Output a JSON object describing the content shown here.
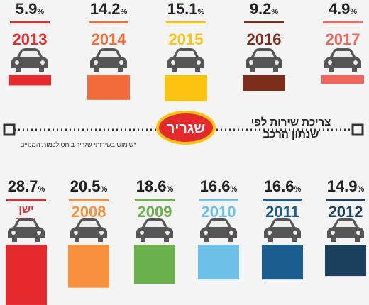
{
  "chart_data": [
    {
      "type": "bar",
      "categories": [
        "2013",
        "2014",
        "2015",
        "2016",
        "2017"
      ],
      "values": [
        5.9,
        14.2,
        15.1,
        9.2,
        4.9
      ],
      "value_labels": [
        "5.9%",
        "14.2%",
        "15.1%",
        "9.2%",
        "4.9%"
      ],
      "colors": [
        "#e52a2d",
        "#f26b3a",
        "#fcc410",
        "#7b2e1b",
        "#f0685c"
      ]
    },
    {
      "type": "bar",
      "categories": [
        "ישן יותר",
        "2008",
        "2009",
        "2010",
        "2011",
        "2012"
      ],
      "values": [
        28.7,
        20.5,
        18.6,
        16.6,
        16.6,
        14.9
      ],
      "value_labels": [
        "28.7%",
        "20.5%",
        "18.6%",
        "16.6%",
        "16.6%",
        "14.9%"
      ],
      "colors": [
        "#e52a2d",
        "#f7913d",
        "#6ab14b",
        "#6cc0e9",
        "#1c5d8f",
        "#1b3f5c"
      ]
    }
  ],
  "annotations": {
    "title": "צריכת שירות לפי שנתון הרכב",
    "logo": "שגריר",
    "note": "*שימוש בשירותי שגריר ביחס לכמות המנויים"
  }
}
